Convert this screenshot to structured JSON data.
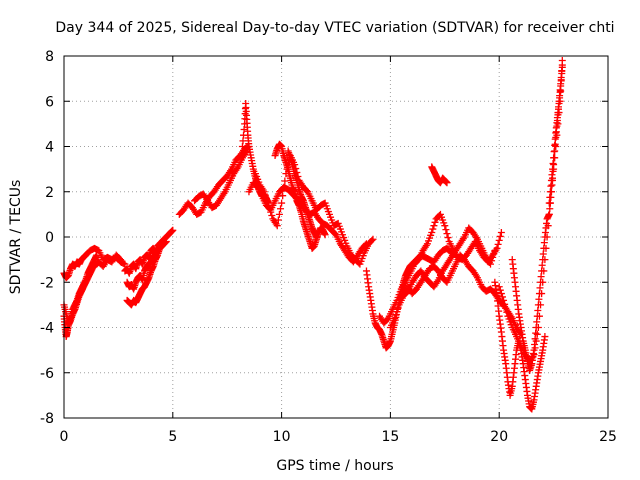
{
  "chart_data": {
    "type": "scatter",
    "title": "Day 344 of 2025, Sidereal Day-to-day VTEC variation (SDTVAR) for receiver chti",
    "xlabel": "GPS time / hours",
    "ylabel": "SDTVAR / TECUs",
    "xlim": [
      0,
      25
    ],
    "ylim": [
      -8,
      8
    ],
    "xticks": [
      0,
      5,
      10,
      15,
      20,
      25
    ],
    "yticks": [
      -8,
      -6,
      -4,
      -2,
      0,
      2,
      4,
      6,
      8
    ],
    "grid": true,
    "marker": "plus",
    "color": "#ff0000",
    "series": [
      {
        "x": [
          0.0,
          0.1,
          0.2,
          0.3,
          0.4,
          0.5,
          0.6,
          0.7,
          0.8,
          0.9,
          1.0,
          1.2,
          1.4,
          1.6,
          1.8,
          2.0,
          2.2,
          2.4,
          2.6,
          2.8
        ],
        "y": [
          -1.6,
          -1.8,
          -1.7,
          -1.4,
          -1.2,
          -1.3,
          -1.1,
          -1.2,
          -1.0,
          -0.9,
          -0.8,
          -0.6,
          -0.5,
          -0.6,
          -1.0,
          -0.9,
          -1.0,
          -0.9,
          -1.1,
          -1.2
        ]
      },
      {
        "x": [
          0.0,
          0.05,
          0.1,
          0.15,
          0.2,
          0.3,
          0.4,
          0.5,
          0.6,
          0.7,
          0.8,
          0.9,
          1.0,
          1.1,
          1.2,
          1.3,
          1.4,
          1.5,
          1.6,
          1.8,
          2.0,
          2.2,
          2.4,
          2.6
        ],
        "y": [
          -3.5,
          -4.0,
          -4.4,
          -4.2,
          -3.9,
          -3.7,
          -3.4,
          -3.2,
          -2.9,
          -2.6,
          -2.4,
          -2.2,
          -2.0,
          -1.8,
          -1.6,
          -1.4,
          -1.2,
          -1.2,
          -1.1,
          -1.3,
          -1.0,
          -1.1,
          -0.8,
          -1.0
        ]
      },
      {
        "x": [
          0.0,
          0.1,
          0.2,
          0.3,
          0.4,
          0.5,
          0.6,
          0.7,
          0.8,
          0.9,
          1.0,
          1.1,
          1.2,
          1.3,
          1.4,
          1.5
        ],
        "y": [
          -3.0,
          -3.4,
          -3.8,
          -3.6,
          -3.2,
          -3.0,
          -2.8,
          -2.5,
          -2.3,
          -2.1,
          -1.9,
          -1.6,
          -1.4,
          -1.2,
          -1.0,
          -0.8
        ]
      },
      {
        "x": [
          2.8,
          2.9,
          3.0,
          3.1,
          3.2,
          3.3,
          3.4,
          3.5,
          3.6,
          3.7,
          3.8,
          3.9,
          4.0,
          4.1,
          4.2,
          4.3,
          4.4,
          4.5,
          4.6,
          4.7,
          4.8,
          4.9,
          5.0
        ],
        "y": [
          -1.5,
          -1.4,
          -1.6,
          -1.3,
          -1.2,
          -1.4,
          -1.1,
          -1.0,
          -1.2,
          -0.9,
          -0.8,
          -0.9,
          -0.6,
          -0.5,
          -0.7,
          -0.4,
          -0.3,
          -0.2,
          -0.1,
          0.0,
          0.1,
          0.2,
          0.3
        ]
      },
      {
        "x": [
          2.9,
          3.0,
          3.1,
          3.2,
          3.3,
          3.4,
          3.5,
          3.6,
          3.7,
          3.8,
          3.9,
          4.0,
          4.1,
          4.2,
          4.3,
          4.4,
          4.5,
          4.6,
          4.7
        ],
        "y": [
          -2.0,
          -2.2,
          -2.1,
          -2.3,
          -2.0,
          -1.8,
          -1.7,
          -1.9,
          -1.5,
          -1.3,
          -1.2,
          -1.1,
          -0.9,
          -0.8,
          -0.6,
          -0.5,
          -0.4,
          -0.3,
          -0.2
        ]
      },
      {
        "x": [
          2.9,
          3.0,
          3.1,
          3.2,
          3.3,
          3.4,
          3.5,
          3.6,
          3.7,
          3.8,
          3.9,
          4.0,
          4.1,
          4.2,
          4.3,
          4.4,
          4.5
        ],
        "y": [
          -2.8,
          -2.9,
          -3.0,
          -2.8,
          -2.9,
          -2.7,
          -2.5,
          -2.3,
          -2.2,
          -2.0,
          -1.8,
          -1.5,
          -1.3,
          -1.0,
          -0.8,
          -0.5,
          -0.3
        ]
      },
      {
        "x": [
          5.3,
          5.5,
          5.7,
          5.9,
          6.1,
          6.3,
          6.5,
          6.7,
          6.9,
          7.1,
          7.3,
          7.5,
          7.7,
          7.9,
          8.1,
          8.3,
          8.5
        ],
        "y": [
          1.0,
          1.2,
          1.5,
          1.3,
          1.0,
          1.1,
          1.5,
          1.8,
          2.0,
          2.3,
          2.5,
          2.7,
          3.0,
          3.4,
          3.6,
          3.9,
          4.0
        ]
      },
      {
        "x": [
          6.0,
          6.2,
          6.4,
          6.6,
          6.8,
          7.0,
          7.2,
          7.4,
          7.6,
          7.8,
          8.0,
          8.2,
          8.4
        ],
        "y": [
          1.6,
          1.8,
          1.9,
          1.6,
          1.3,
          1.4,
          1.7,
          2.0,
          2.4,
          2.8,
          3.1,
          3.5,
          3.8
        ]
      },
      {
        "x": [
          8.2,
          8.3,
          8.35,
          8.4,
          8.45,
          8.5,
          8.6,
          8.7,
          8.8,
          8.9,
          9.0,
          9.1,
          9.2,
          9.3,
          9.4
        ],
        "y": [
          4.0,
          5.0,
          5.9,
          5.2,
          4.5,
          4.0,
          3.5,
          3.0,
          2.6,
          2.3,
          2.0,
          1.8,
          1.9,
          1.7,
          1.5
        ]
      },
      {
        "x": [
          8.5,
          8.7,
          8.9,
          9.1,
          9.3,
          9.5,
          9.7,
          9.9,
          10.1,
          10.3,
          10.5,
          10.7,
          10.9,
          11.1,
          11.3,
          11.5,
          11.7,
          11.9,
          12.1,
          12.3,
          12.5,
          12.7,
          12.9,
          13.1,
          13.3,
          13.5,
          13.7,
          13.9
        ],
        "y": [
          2.0,
          2.4,
          2.2,
          1.8,
          1.4,
          1.2,
          1.6,
          2.0,
          2.2,
          2.1,
          1.9,
          1.7,
          1.5,
          1.2,
          1.0,
          1.1,
          0.8,
          0.6,
          0.5,
          0.3,
          0.1,
          -0.3,
          -0.6,
          -0.9,
          -1.1,
          -0.8,
          -0.5,
          -0.3
        ]
      },
      {
        "x": [
          8.8,
          9.0,
          9.2,
          9.4,
          9.6,
          9.8,
          10.0,
          10.2,
          10.4,
          10.6,
          10.8,
          11.0,
          11.2,
          11.4,
          11.6,
          11.8,
          12.0,
          12.2,
          12.4,
          12.6,
          12.8,
          13.0,
          13.2,
          13.4,
          13.6,
          13.8,
          14.0,
          14.2
        ],
        "y": [
          2.8,
          2.3,
          2.0,
          1.4,
          0.8,
          0.5,
          1.5,
          2.8,
          3.6,
          3.2,
          2.5,
          2.2,
          2.0,
          1.6,
          1.2,
          1.4,
          1.5,
          1.0,
          0.5,
          0.6,
          0.1,
          -0.4,
          -0.8,
          -1.0,
          -1.2,
          -0.7,
          -0.3,
          -0.1
        ]
      },
      {
        "x": [
          9.7,
          9.8,
          9.9,
          10.0,
          10.1,
          10.2,
          10.3,
          10.4,
          10.5,
          10.6,
          10.7,
          10.8,
          10.9,
          11.0,
          11.1,
          11.2,
          11.3,
          11.4,
          11.5,
          11.6,
          11.7,
          11.8,
          11.9,
          12.0
        ],
        "y": [
          3.6,
          3.9,
          4.1,
          4.0,
          3.6,
          3.3,
          3.0,
          2.6,
          2.2,
          2.0,
          1.6,
          1.4,
          1.1,
          0.7,
          0.4,
          0.1,
          -0.2,
          -0.5,
          -0.4,
          -0.1,
          0.2,
          0.4,
          0.3,
          0.1
        ]
      },
      {
        "x": [
          10.3,
          10.4,
          10.5,
          10.6,
          10.7,
          10.8,
          10.9,
          11.0,
          11.1,
          11.2,
          11.3,
          11.4,
          11.5,
          11.6
        ],
        "y": [
          3.8,
          3.5,
          3.2,
          2.8,
          2.5,
          2.1,
          1.8,
          1.6,
          1.3,
          1.0,
          0.7,
          0.4,
          0.2,
          0.0
        ]
      },
      {
        "x": [
          13.9,
          14.0,
          14.1,
          14.2,
          14.3,
          14.4,
          14.5,
          14.6,
          14.7,
          14.8,
          14.9,
          15.0,
          15.1,
          15.2,
          15.3,
          15.4,
          15.5,
          15.6,
          15.7,
          15.8,
          15.9,
          16.0,
          16.2,
          16.4,
          16.6,
          16.8,
          17.0,
          17.2,
          17.4,
          17.6,
          17.8,
          18.0
        ],
        "y": [
          -1.5,
          -2.2,
          -2.8,
          -3.4,
          -3.8,
          -4.0,
          -4.1,
          -4.3,
          -4.6,
          -4.9,
          -4.8,
          -4.6,
          -4.2,
          -3.8,
          -3.3,
          -2.9,
          -2.4,
          -2.0,
          -1.7,
          -1.5,
          -1.3,
          -1.2,
          -1.0,
          -0.8,
          -0.9,
          -1.0,
          -1.1,
          -0.8,
          -0.6,
          -0.5,
          -0.7,
          -0.8
        ]
      },
      {
        "x": [
          14.5,
          14.7,
          14.9,
          15.1,
          15.3,
          15.5,
          15.7,
          15.9,
          16.1,
          16.3,
          16.5,
          16.7,
          16.9,
          17.1,
          17.3,
          17.5,
          17.7,
          17.9,
          18.1,
          18.3,
          18.5,
          18.7,
          18.9,
          19.1,
          19.3,
          19.5,
          19.7,
          19.9,
          20.1
        ],
        "y": [
          -3.5,
          -3.8,
          -3.6,
          -3.2,
          -2.8,
          -2.3,
          -2.0,
          -1.6,
          -1.2,
          -1.0,
          -0.6,
          -0.3,
          0.2,
          0.8,
          1.0,
          0.5,
          -0.2,
          -0.6,
          -0.9,
          -1.0,
          -0.8,
          -0.5,
          -0.2,
          -0.6,
          -0.9,
          -1.1,
          -0.8,
          -0.5,
          0.2
        ]
      },
      {
        "x": [
          15.0,
          15.2,
          15.4,
          15.6,
          15.8,
          16.0,
          16.2,
          16.4,
          16.6,
          16.8,
          17.0,
          17.2,
          17.4,
          17.6,
          17.8,
          18.0,
          18.2,
          18.4,
          18.6,
          18.8,
          19.0,
          19.2,
          19.4,
          19.6,
          19.8
        ],
        "y": [
          -4.0,
          -3.6,
          -3.0,
          -2.6,
          -2.4,
          -2.0,
          -1.7,
          -1.5,
          -1.8,
          -2.0,
          -2.2,
          -1.9,
          -1.5,
          -1.2,
          -0.9,
          -0.6,
          -0.3,
          0.0,
          0.4,
          0.2,
          -0.1,
          -0.5,
          -0.9,
          -1.2,
          -0.6
        ]
      },
      {
        "x": [
          15.4,
          15.6,
          15.8,
          16.0,
          16.2,
          16.4,
          16.6,
          16.8,
          17.0,
          17.2,
          17.4,
          17.6,
          17.8,
          18.0,
          18.2,
          18.4,
          18.6,
          18.8,
          19.0,
          19.2,
          19.4,
          19.6,
          19.8,
          20.0,
          20.2,
          20.4,
          20.6,
          20.8,
          21.0
        ],
        "y": [
          -2.8,
          -2.5,
          -2.2,
          -2.5,
          -2.3,
          -2.0,
          -1.7,
          -1.4,
          -1.3,
          -1.5,
          -1.8,
          -2.0,
          -1.6,
          -1.2,
          -0.8,
          -1.0,
          -1.3,
          -1.5,
          -1.8,
          -2.2,
          -2.4,
          -2.3,
          -2.5,
          -2.8,
          -3.0,
          -3.3,
          -3.6,
          -4.0,
          -4.3
        ]
      },
      {
        "x": [
          16.9,
          17.0,
          17.1,
          17.2,
          17.3,
          17.4,
          17.5,
          17.6
        ],
        "y": [
          3.1,
          2.9,
          2.7,
          2.5,
          2.4,
          2.6,
          2.5,
          2.4
        ]
      },
      {
        "x": [
          19.8,
          19.9,
          20.0,
          20.1,
          20.2,
          20.3,
          20.4,
          20.5,
          20.6,
          20.7,
          20.8,
          20.9,
          21.0,
          21.1,
          21.2,
          21.3,
          21.4,
          21.5,
          21.6,
          21.7,
          21.8,
          21.9,
          22.0,
          22.1
        ],
        "y": [
          -2.0,
          -2.6,
          -3.5,
          -4.2,
          -5.0,
          -5.6,
          -6.4,
          -7.0,
          -6.6,
          -5.8,
          -5.0,
          -4.6,
          -5.0,
          -5.6,
          -6.3,
          -7.0,
          -7.5,
          -7.6,
          -7.2,
          -6.6,
          -6.0,
          -5.5,
          -5.0,
          -4.4
        ]
      },
      {
        "x": [
          20.0,
          20.2,
          20.4,
          20.6,
          20.8,
          21.0,
          21.2,
          21.4,
          21.6,
          21.8,
          22.0,
          22.2,
          22.4,
          22.6,
          22.8,
          22.9
        ],
        "y": [
          -2.2,
          -2.8,
          -3.5,
          -4.0,
          -4.4,
          -4.8,
          -5.2,
          -5.5,
          -5.2,
          -4.0,
          -2.0,
          0.0,
          2.0,
          4.0,
          6.0,
          7.8
        ]
      },
      {
        "x": [
          20.6,
          20.7,
          20.8,
          20.9,
          21.0,
          21.1,
          21.2,
          21.3,
          21.4,
          21.5,
          21.6,
          21.7,
          21.8,
          21.9,
          22.0,
          22.1,
          22.2,
          22.3,
          22.4,
          22.5,
          22.6,
          22.7,
          22.8,
          22.9
        ],
        "y": [
          -1.0,
          -1.8,
          -2.6,
          -3.4,
          -4.0,
          -4.6,
          -5.0,
          -5.5,
          -5.9,
          -5.6,
          -5.0,
          -4.0,
          -3.0,
          -2.0,
          -1.0,
          0.0,
          0.8,
          1.0,
          2.0,
          3.2,
          4.4,
          5.4,
          6.4,
          7.5
        ]
      },
      {
        "x": [
          22.3,
          22.4,
          22.5,
          22.6,
          22.7,
          22.8,
          22.9
        ],
        "y": [
          1.5,
          2.5,
          3.5,
          4.6,
          5.5,
          6.5,
          7.6
        ]
      }
    ]
  }
}
